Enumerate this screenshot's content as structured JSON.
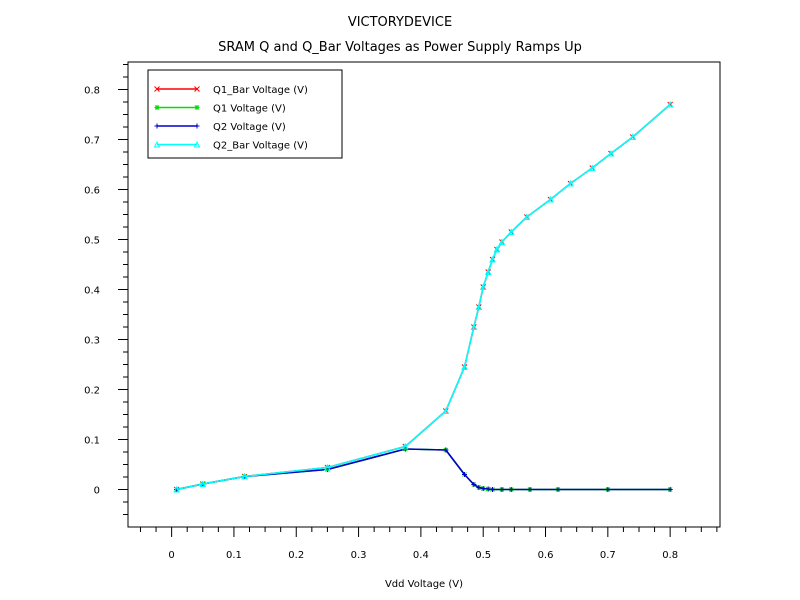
{
  "chart_data": {
    "type": "line",
    "title": "VICTORYDEVICE",
    "subtitle": "SRAM Q and Q_Bar Voltages as Power Supply Ramps Up",
    "xlabel": "Vdd Voltage (V)",
    "ylabel": "",
    "xlim": [
      -0.07,
      0.88
    ],
    "ylim": [
      -0.075,
      0.855
    ],
    "x_ticks": [
      0,
      0.1,
      0.2,
      0.3,
      0.4,
      0.5,
      0.6,
      0.7,
      0.8
    ],
    "x_tick_labels": [
      "0",
      "0.1",
      "0.2",
      "0.3",
      "0.4",
      "0.5",
      "0.6",
      "0.7",
      "0.8"
    ],
    "y_ticks": [
      0,
      0.1,
      0.2,
      0.3,
      0.4,
      0.5,
      0.6,
      0.7,
      0.8
    ],
    "y_tick_labels": [
      "0",
      "0.1",
      "0.2",
      "0.3",
      "0.4",
      "0.5",
      "0.6",
      "0.7",
      "0.8"
    ],
    "grid": false,
    "legend_position": "top-left",
    "series": [
      {
        "name": "Q1_Bar Voltage (V)",
        "color": "#ff0000",
        "marker": "x",
        "x": [
          0.008,
          0.05,
          0.117,
          0.25,
          0.375,
          0.44,
          0.47,
          0.485,
          0.493,
          0.5,
          0.508,
          0.515,
          0.522,
          0.53,
          0.545,
          0.57,
          0.608,
          0.64,
          0.675,
          0.705,
          0.74,
          0.8
        ],
        "y": [
          0,
          0.011,
          0.026,
          0.044,
          0.086,
          0.157,
          0.245,
          0.325,
          0.365,
          0.405,
          0.435,
          0.46,
          0.48,
          0.495,
          0.515,
          0.545,
          0.58,
          0.612,
          0.643,
          0.672,
          0.705,
          0.77
        ]
      },
      {
        "name": "Q1 Voltage (V)",
        "color": "#00e000",
        "marker": "star",
        "x": [
          0.008,
          0.05,
          0.117,
          0.25,
          0.375,
          0.44,
          0.47,
          0.485,
          0.493,
          0.5,
          0.508,
          0.515,
          0.53,
          0.545,
          0.575,
          0.62,
          0.7,
          0.8
        ],
        "y": [
          0,
          0.011,
          0.026,
          0.04,
          0.081,
          0.079,
          0.03,
          0.01,
          0.004,
          0.002,
          0.001,
          0,
          0,
          0,
          0,
          0,
          0,
          0
        ]
      },
      {
        "name": "Q2 Voltage (V)",
        "color": "#0000c8",
        "marker": "plus",
        "x": [
          0.008,
          0.05,
          0.117,
          0.25,
          0.375,
          0.44,
          0.47,
          0.485,
          0.493,
          0.5,
          0.508,
          0.515,
          0.53,
          0.545,
          0.575,
          0.62,
          0.7,
          0.8
        ],
        "y": [
          0,
          0.011,
          0.026,
          0.04,
          0.081,
          0.079,
          0.03,
          0.01,
          0.004,
          0.002,
          0.001,
          0,
          0,
          0,
          0,
          0,
          0,
          0
        ]
      },
      {
        "name": "Q2_Bar Voltage (V)",
        "color": "#00ffff",
        "marker": "triangle",
        "x": [
          0.008,
          0.05,
          0.117,
          0.25,
          0.375,
          0.44,
          0.47,
          0.485,
          0.493,
          0.5,
          0.508,
          0.515,
          0.522,
          0.53,
          0.545,
          0.57,
          0.608,
          0.64,
          0.675,
          0.705,
          0.74,
          0.8
        ],
        "y": [
          0,
          0.011,
          0.026,
          0.044,
          0.086,
          0.157,
          0.245,
          0.325,
          0.365,
          0.405,
          0.435,
          0.46,
          0.48,
          0.495,
          0.515,
          0.545,
          0.58,
          0.612,
          0.643,
          0.672,
          0.705,
          0.77
        ]
      }
    ]
  }
}
